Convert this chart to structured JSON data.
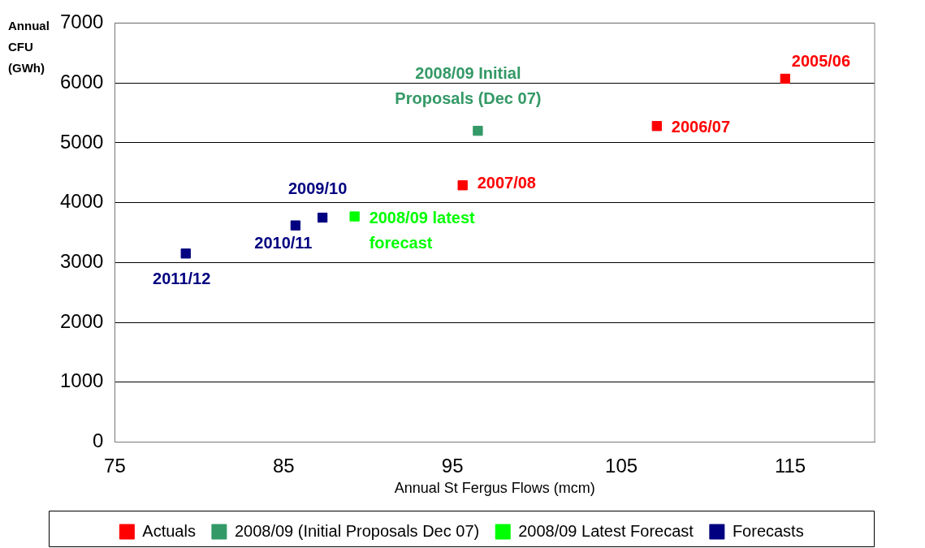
{
  "chart_data": {
    "type": "scatter",
    "ylabel": "Annual CFU (GWh)",
    "xlabel": "Annual St Fergus Flows (mcm)",
    "xlim": [
      75,
      120
    ],
    "xticks": [
      75,
      85,
      95,
      105,
      115
    ],
    "ylim": [
      0,
      7000
    ],
    "yticks": [
      0,
      1000,
      2000,
      3000,
      4000,
      5000,
      6000,
      7000
    ],
    "grid": "y",
    "legend": "bottom",
    "marker": "square",
    "series": [
      {
        "name": "Actuals",
        "color": "#ff0000",
        "x": [
          114.7,
          107.1,
          95.6
        ],
        "values": [
          6070,
          5280,
          4290
        ]
      },
      {
        "name": "2008/09 (Initial Proposals Dec 07)",
        "color": "#339966",
        "x": [
          96.5
        ],
        "values": [
          5200
        ]
      },
      {
        "name": "2008/09 Latest Forecast",
        "color": "#00ff00",
        "x": [
          89.2
        ],
        "values": [
          3770
        ]
      },
      {
        "name": "Forecasts",
        "color": "#000080",
        "x": [
          87.3,
          85.7,
          79.2
        ],
        "values": [
          3750,
          3620,
          3150
        ]
      }
    ],
    "annotations": [
      {
        "text": "2005/06",
        "x": 114.7,
        "y": 6070
      },
      {
        "text": "2006/07",
        "x": 107.1,
        "y": 5280
      },
      {
        "text": "2007/08",
        "x": 95.6,
        "y": 4290
      },
      {
        "text": "2008/09 Initial Proposals (Dec 07)",
        "x": 96.5,
        "y": 5200
      },
      {
        "text": "2008/09 latest forecast",
        "x": 89.2,
        "y": 3770
      },
      {
        "text": "2009/10",
        "x": 87.3,
        "y": 3750
      },
      {
        "text": "2010/11",
        "x": 85.7,
        "y": 3620
      },
      {
        "text": "2011/12",
        "x": 79.2,
        "y": 3150
      }
    ]
  }
}
